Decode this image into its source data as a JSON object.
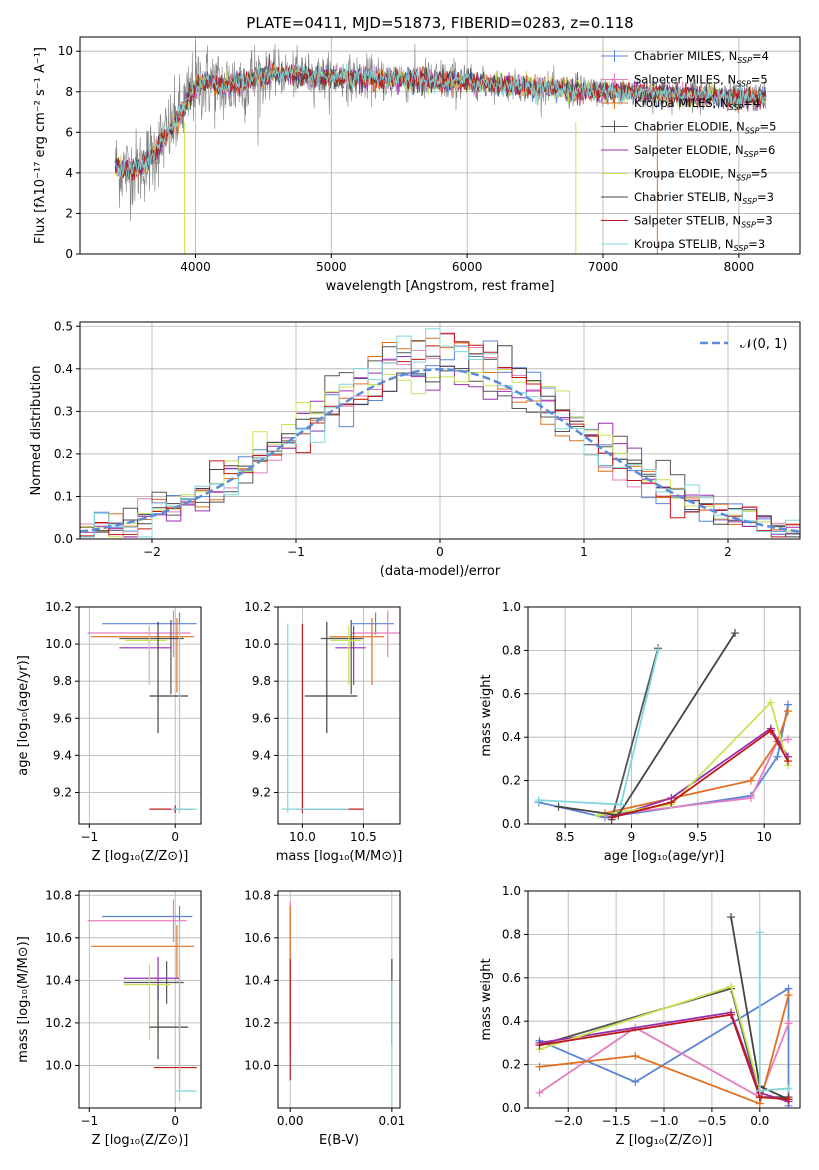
{
  "figure": {
    "title": "PLATE=0411, MJD=51873, FIBERID=0283, z=0.118"
  },
  "colors": {
    "Chabrier MILES": "#5b84d8",
    "Salpeter MILES": "#e47fc0",
    "Kroupa MILES": "#e07020",
    "Chabrier ELODIE": "#555555",
    "Salpeter ELODIE": "#9a2fb0",
    "Kroupa ELODIE": "#c7e455",
    "Chabrier STELIB": "#444444",
    "Salpeter STELIB": "#c01818",
    "Kroupa STELIB": "#7fd8dc",
    "gray": "#808080",
    "gaussian": "#5b8cd8"
  },
  "chart_data": [
    {
      "type": "line",
      "id": "spectrum",
      "xlabel": "wavelength [Angstrom, rest frame]",
      "ylabel": "Flux [fλ10⁻¹⁷ erg cm⁻² s⁻¹ A⁻¹]",
      "xlim": [
        3150,
        8450
      ],
      "ylim": [
        0,
        10.7
      ],
      "xticks": [
        4000,
        5000,
        6000,
        7000,
        8000
      ],
      "yticks": [
        0,
        2,
        4,
        6,
        8,
        10
      ],
      "data_wavelength_range": [
        3410,
        8200
      ],
      "continuum_x": [
        3410,
        3500,
        3600,
        3700,
        3800,
        3900,
        4000,
        4100,
        4200,
        4400,
        4600,
        4800,
        5000,
        5500,
        6000,
        6500,
        7000,
        7500,
        8000,
        8200
      ],
      "continuum_y": [
        4.3,
        4.1,
        4.3,
        5.0,
        6.0,
        7.0,
        8.4,
        8.5,
        8.2,
        8.6,
        8.9,
        8.8,
        8.7,
        8.6,
        8.5,
        8.2,
        8.0,
        7.9,
        7.7,
        7.7
      ],
      "legend": [
        {
          "label": "Chabrier MILES, N",
          "sub": "SSP",
          "tail": "=4",
          "style": "plus"
        },
        {
          "label": "Salpeter MILES, N",
          "sub": "SSP",
          "tail": "=5",
          "style": "plus"
        },
        {
          "label": "Kroupa MILES, N",
          "sub": "SSP",
          "tail": "=4",
          "style": "plus"
        },
        {
          "label": "Chabrier ELODIE, N",
          "sub": "SSP",
          "tail": "=5",
          "style": "plus"
        },
        {
          "label": "Salpeter ELODIE, N",
          "sub": "SSP",
          "tail": "=6",
          "style": "line"
        },
        {
          "label": "Kroupa ELODIE, N",
          "sub": "SSP",
          "tail": "=5",
          "style": "line"
        },
        {
          "label": "Chabrier STELIB, N",
          "sub": "SSP",
          "tail": "=3",
          "style": "line"
        },
        {
          "label": "Salpeter STELIB, N",
          "sub": "SSP",
          "tail": "=3",
          "style": "line"
        },
        {
          "label": "Kroupa STELIB, N",
          "sub": "SSP",
          "tail": "=3",
          "style": "line"
        }
      ]
    },
    {
      "type": "histogram",
      "id": "residuals",
      "xlabel": "(data-model)/error",
      "ylabel": "Normed distribution",
      "xlim": [
        -2.5,
        2.5
      ],
      "ylim": [
        0,
        0.51
      ],
      "xticks": [
        -2,
        -1,
        0,
        1,
        2
      ],
      "yticks": [
        0,
        0.1,
        0.2,
        0.3,
        0.4,
        0.5
      ],
      "bin_width": 0.1,
      "bin_start": -2.5,
      "gaussian_label": "𝒩(0, 1)",
      "series_profile": "approximately standard normal, peak about 0.40-0.48 near 0"
    },
    {
      "type": "errorbar",
      "id": "age_vs_Z",
      "xlabel": "Z [log₁₀(Z/Z⊙)]",
      "ylabel": "age  [log₁₀(age/yr)]",
      "xlim": [
        -1.12,
        0.3
      ],
      "ylim": [
        9.03,
        10.2
      ],
      "xticks": [
        -1,
        0
      ],
      "yticks": [
        9.2,
        9.4,
        9.6,
        9.8,
        10.0,
        10.2
      ],
      "points": [
        {
          "model": "Chabrier MILES",
          "x": 0.05,
          "y": 10.11,
          "xerr": [
            0.9,
            0.2
          ],
          "yerr": [
            0.06,
            0.06
          ]
        },
        {
          "model": "Salpeter MILES",
          "x": -0.02,
          "y": 10.06,
          "xerr": [
            1.0,
            0.2
          ],
          "yerr": [
            0.13,
            0.12
          ]
        },
        {
          "model": "Kroupa MILES",
          "x": 0.02,
          "y": 10.04,
          "xerr": [
            1.0,
            0.2
          ],
          "yerr": [
            0.3,
            0.1
          ]
        },
        {
          "model": "Chabrier ELODIE",
          "x": -0.05,
          "y": 10.03,
          "xerr": [
            0.6,
            0.15
          ],
          "yerr": [
            0.3,
            0.1
          ]
        },
        {
          "model": "Salpeter ELODIE",
          "x": -0.3,
          "y": 9.98,
          "xerr": [
            0.35,
            0.25
          ],
          "yerr": [
            0.2,
            0.12
          ]
        },
        {
          "model": "Kroupa ELODIE",
          "x": -0.3,
          "y": 10.02,
          "xerr": [
            0.28,
            0.2
          ],
          "yerr": [
            0.24,
            0.08
          ]
        },
        {
          "model": "Chabrier STELIB",
          "x": -0.2,
          "y": 9.72,
          "xerr": [
            0.1,
            0.35
          ],
          "yerr": [
            0.2,
            0.4
          ]
        },
        {
          "model": "Salpeter STELIB",
          "x": 0.0,
          "y": 9.11,
          "xerr": [
            0.3,
            0.2
          ],
          "yerr": [
            0.02,
            0.02
          ]
        },
        {
          "model": "Kroupa STELIB",
          "x": 0.05,
          "y": 9.11,
          "xerr": [
            0.1,
            0.2
          ],
          "yerr": [
            0.02,
            1.0
          ]
        }
      ]
    },
    {
      "type": "errorbar",
      "id": "age_vs_mass",
      "xlabel": "mass [log₁₀(M/M⊙)]",
      "ylabel": "",
      "xlim": [
        9.8,
        10.8
      ],
      "ylim": [
        9.03,
        10.2
      ],
      "xticks": [
        10.0,
        10.5
      ],
      "yticks": [
        9.2,
        9.4,
        9.6,
        9.8,
        10.0,
        10.2
      ],
      "points": [
        {
          "model": "Chabrier MILES",
          "x": 10.6,
          "y": 10.11,
          "xerr": [
            0.2,
            0.15
          ],
          "yerr": [
            0.06,
            0.06
          ]
        },
        {
          "model": "Salpeter MILES",
          "x": 10.7,
          "y": 10.06,
          "xerr": [
            0.3,
            0.1
          ],
          "yerr": [
            0.13,
            0.12
          ]
        },
        {
          "model": "Kroupa MILES",
          "x": 10.57,
          "y": 10.04,
          "xerr": [
            0.35,
            0.1
          ],
          "yerr": [
            0.26,
            0.1
          ]
        },
        {
          "model": "Chabrier ELODIE",
          "x": 10.4,
          "y": 10.03,
          "xerr": [
            0.25,
            0.1
          ],
          "yerr": [
            0.3,
            0.1
          ]
        },
        {
          "model": "Salpeter ELODIE",
          "x": 10.42,
          "y": 9.98,
          "xerr": [
            0.15,
            0.1
          ],
          "yerr": [
            0.2,
            0.12
          ]
        },
        {
          "model": "Kroupa ELODIE",
          "x": 10.38,
          "y": 10.02,
          "xerr": [
            0.15,
            0.1
          ],
          "yerr": [
            0.24,
            0.08
          ]
        },
        {
          "model": "Chabrier STELIB",
          "x": 10.2,
          "y": 9.72,
          "xerr": [
            0.18,
            0.25
          ],
          "yerr": [
            0.2,
            0.4
          ]
        },
        {
          "model": "Salpeter STELIB",
          "x": 10.0,
          "y": 9.11,
          "xerr": [
            0.05,
            0.5
          ],
          "yerr": [
            0.02,
            1.0
          ]
        },
        {
          "model": "Kroupa STELIB",
          "x": 9.88,
          "y": 9.11,
          "xerr": [
            0.05,
            0.5
          ],
          "yerr": [
            0.02,
            1.0
          ]
        }
      ]
    },
    {
      "type": "line",
      "id": "weight_vs_age",
      "xlabel": "age  [log₁₀(age/yr)]",
      "ylabel": "mass weight",
      "xlim": [
        8.22,
        10.27
      ],
      "ylim": [
        0,
        1.0
      ],
      "xticks": [
        8.5,
        9.0,
        9.5,
        10.0
      ],
      "yticks": [
        0.0,
        0.2,
        0.4,
        0.6,
        0.8,
        1.0
      ],
      "series": [
        {
          "model": "Chabrier MILES",
          "x": [
            8.3,
            8.8,
            9.9,
            10.1,
            10.18
          ],
          "y": [
            0.1,
            0.03,
            0.13,
            0.31,
            0.55
          ]
        },
        {
          "model": "Salpeter MILES",
          "x": [
            8.8,
            9.9,
            10.1,
            10.18
          ],
          "y": [
            0.04,
            0.12,
            0.38,
            0.39
          ]
        },
        {
          "model": "Kroupa MILES",
          "x": [
            8.8,
            9.9,
            10.1,
            10.18
          ],
          "y": [
            0.05,
            0.2,
            0.38,
            0.52
          ]
        },
        {
          "model": "Chabrier ELODIE",
          "x": [
            8.85,
            9.2
          ],
          "y": [
            0.02,
            0.81
          ]
        },
        {
          "model": "Salpeter ELODIE",
          "x": [
            8.85,
            9.3,
            10.05,
            10.18
          ],
          "y": [
            0.03,
            0.12,
            0.44,
            0.31
          ]
        },
        {
          "model": "Kroupa ELODIE",
          "x": [
            8.75,
            9.3,
            10.05,
            10.18
          ],
          "y": [
            0.04,
            0.09,
            0.56,
            0.27
          ]
        },
        {
          "model": "Chabrier STELIB",
          "x": [
            8.45,
            8.9,
            9.78
          ],
          "y": [
            0.08,
            0.04,
            0.88
          ]
        },
        {
          "model": "Salpeter STELIB",
          "x": [
            8.85,
            9.3,
            10.05,
            10.18
          ],
          "y": [
            0.03,
            0.1,
            0.43,
            0.29
          ]
        },
        {
          "model": "Kroupa STELIB",
          "x": [
            8.3,
            8.92,
            9.2
          ],
          "y": [
            0.11,
            0.09,
            0.8
          ]
        }
      ]
    },
    {
      "type": "errorbar",
      "id": "mass_vs_Z",
      "xlabel": "Z [log₁₀(Z/Z⊙)]",
      "ylabel": "mass [log₁₀(M/M⊙)]",
      "xlim": [
        -1.12,
        0.3
      ],
      "ylim": [
        9.8,
        10.82
      ],
      "xticks": [
        -1,
        0
      ],
      "yticks": [
        10.0,
        10.2,
        10.4,
        10.6,
        10.8
      ],
      "points": [
        {
          "model": "Chabrier MILES",
          "x": 0.05,
          "y": 10.7,
          "xerr": [
            0.9,
            0.15
          ],
          "yerr": [
            0.05,
            0.05
          ]
        },
        {
          "model": "Salpeter MILES",
          "x": -0.02,
          "y": 10.68,
          "xerr": [
            1.0,
            0.15
          ],
          "yerr": [
            0.1,
            0.1
          ]
        },
        {
          "model": "Kroupa MILES",
          "x": 0.02,
          "y": 10.56,
          "xerr": [
            1.0,
            0.2
          ],
          "yerr": [
            0.15,
            0.1
          ]
        },
        {
          "model": "Chabrier ELODIE",
          "x": -0.1,
          "y": 10.39,
          "xerr": [
            0.5,
            0.2
          ],
          "yerr": [
            0.1,
            0.1
          ]
        },
        {
          "model": "Salpeter ELODIE",
          "x": -0.2,
          "y": 10.41,
          "xerr": [
            0.4,
            0.25
          ],
          "yerr": [
            0.1,
            0.1
          ]
        },
        {
          "model": "Kroupa ELODIE",
          "x": -0.3,
          "y": 10.38,
          "xerr": [
            0.3,
            0.25
          ],
          "yerr": [
            0.26,
            0.1
          ]
        },
        {
          "model": "Chabrier STELIB",
          "x": -0.2,
          "y": 10.18,
          "xerr": [
            0.1,
            0.35
          ],
          "yerr": [
            0.15,
            0.2
          ]
        },
        {
          "model": "Salpeter STELIB",
          "x": 0.05,
          "y": 9.99,
          "xerr": [
            0.3,
            0.2
          ],
          "yerr": [
            0.1,
            0.5
          ]
        },
        {
          "model": "Kroupa STELIB",
          "x": 0.05,
          "y": 9.88,
          "xerr": [
            0.05,
            0.2
          ],
          "yerr": [
            0.05,
            0.8
          ]
        }
      ]
    },
    {
      "type": "errorbar",
      "id": "mass_vs_ebv",
      "xlabel": "E(B-V)",
      "ylabel": "",
      "xlim": [
        -0.0012,
        0.0108
      ],
      "ylim": [
        9.8,
        10.82
      ],
      "xticks": [
        0.0,
        0.01
      ],
      "yticks": [
        10.0,
        10.2,
        10.4,
        10.6,
        10.8
      ],
      "points": [
        {
          "model": "Salpeter MILES",
          "x": 0.0,
          "y": 10.55,
          "yerr": [
            0.5,
            0.22
          ]
        },
        {
          "model": "Kroupa MILES",
          "x": 0.0,
          "y": 10.5,
          "yerr": [
            0.4,
            0.25
          ]
        },
        {
          "model": "Salpeter STELIB",
          "x": 0.0,
          "y": 10.2,
          "yerr": [
            0.27,
            0.3
          ]
        },
        {
          "model": "Chabrier STELIB",
          "x": 0.01,
          "y": 10.3,
          "yerr": [
            0.2,
            0.2
          ]
        },
        {
          "model": "Kroupa STELIB",
          "x": 0.01,
          "y": 10.2,
          "yerr": [
            0.4,
            0.2
          ]
        }
      ]
    },
    {
      "type": "line",
      "id": "weight_vs_Z",
      "xlabel": "Z [log₁₀(Z/Z⊙)]",
      "ylabel": "mass weight",
      "xlim": [
        -2.42,
        0.42
      ],
      "ylim": [
        0,
        1.0
      ],
      "xticks": [
        -2.0,
        -1.5,
        -1.0,
        -0.5,
        0.0
      ],
      "yticks": [
        0.0,
        0.2,
        0.4,
        0.6,
        0.8,
        1.0
      ],
      "series": [
        {
          "model": "Chabrier MILES",
          "x": [
            -2.3,
            -1.3,
            0.3,
            0.3
          ],
          "y": [
            0.31,
            0.12,
            0.55,
            0.01
          ]
        },
        {
          "model": "Salpeter MILES",
          "x": [
            -2.3,
            -1.3,
            0.0,
            0.3
          ],
          "y": [
            0.07,
            0.37,
            0.05,
            0.39
          ]
        },
        {
          "model": "Kroupa MILES",
          "x": [
            -2.3,
            -1.3,
            0.0,
            0.3
          ],
          "y": [
            0.19,
            0.24,
            0.02,
            0.52
          ]
        },
        {
          "model": "Chabrier ELODIE",
          "x": [
            -2.3,
            -0.3,
            0.0,
            0.3
          ],
          "y": [
            0.29,
            0.55,
            0.05,
            0.05
          ]
        },
        {
          "model": "Salpeter ELODIE",
          "x": [
            -2.3,
            -0.3,
            0.0,
            0.3
          ],
          "y": [
            0.3,
            0.44,
            0.07,
            0.03
          ]
        },
        {
          "model": "Kroupa ELODIE",
          "x": [
            -2.3,
            -0.3,
            0.0,
            0.3
          ],
          "y": [
            0.27,
            0.56,
            0.08,
            0.09
          ]
        },
        {
          "model": "Chabrier STELIB",
          "x": [
            -0.3,
            0.0,
            0.3
          ],
          "y": [
            0.88,
            0.1,
            0.04
          ]
        },
        {
          "model": "Salpeter STELIB",
          "x": [
            -2.3,
            -0.3,
            0.0,
            0.3
          ],
          "y": [
            0.29,
            0.43,
            0.05,
            0.04
          ]
        },
        {
          "model": "Kroupa STELIB",
          "x": [
            0.0,
            0.0,
            0.3
          ],
          "y": [
            0.81,
            0.08,
            0.09
          ]
        }
      ]
    }
  ]
}
